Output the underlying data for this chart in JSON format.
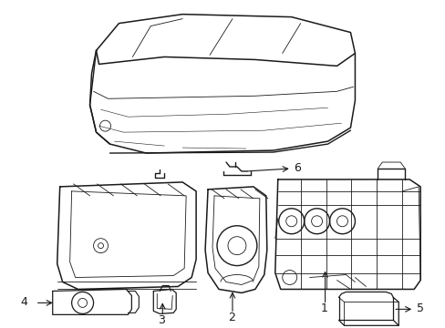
{
  "bg_color": "#ffffff",
  "line_color": "#1a1a1a",
  "figsize": [
    4.89,
    3.6
  ],
  "dpi": 100,
  "lw_main": 1.0,
  "lw_detail": 0.6,
  "lw_thin": 0.4
}
